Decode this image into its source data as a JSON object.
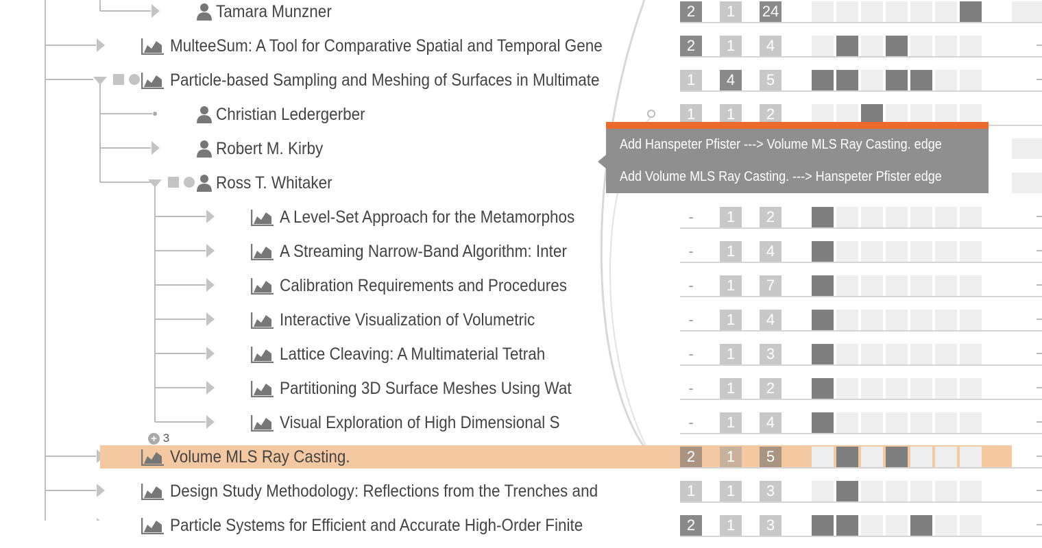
{
  "colors": {
    "highlight_row": "#f4c9a2",
    "tooltip_accent": "#ec6a2c",
    "tooltip_bg": "#8f8f8f",
    "cell_on": "#7f7f7f",
    "cell_off": "#eeeeee"
  },
  "rows": [
    {
      "id": "r0",
      "type": "person",
      "label": "Tamara Munzner",
      "depth": 2,
      "expander": "collapsed",
      "nums": [
        "2",
        "1",
        "24"
      ],
      "numStyle": [
        "dark",
        "light",
        "dark"
      ],
      "cells": [
        0,
        0,
        0,
        0,
        0,
        0,
        1
      ],
      "extraCell": true
    },
    {
      "id": "r1",
      "type": "paper",
      "label": "MulteeSum: A Tool for Comparative Spatial and Temporal Gene",
      "depth": 1,
      "expander": "collapsed",
      "nums": [
        "2",
        "1",
        "4"
      ],
      "numStyle": [
        "dark",
        "light",
        "light"
      ],
      "cells": [
        0,
        1,
        0,
        1,
        0,
        0,
        0
      ],
      "dashRight": true
    },
    {
      "id": "r2",
      "type": "paper",
      "label": "Particle-based Sampling and Meshing of Surfaces in Multimate",
      "depth": 1,
      "expander": "expanded",
      "nums": [
        "1",
        "4",
        "5"
      ],
      "numStyle": [
        "light",
        "dark",
        "light"
      ],
      "cells": [
        1,
        1,
        0,
        1,
        1,
        0,
        0
      ],
      "dashRight": true
    },
    {
      "id": "r3",
      "type": "person",
      "label": "Christian Ledergerber",
      "depth": 2,
      "expander": "leaf",
      "nums": [
        "1",
        "1",
        "2"
      ],
      "numStyle": [
        "light",
        "light",
        "light"
      ],
      "cells": [
        0,
        0,
        1,
        0,
        0,
        0,
        0
      ]
    },
    {
      "id": "r4",
      "type": "person",
      "label": "Robert M. Kirby",
      "depth": 2,
      "expander": "collapsed",
      "nums": [
        "",
        "",
        ""
      ],
      "numStyle": [
        "",
        "",
        ""
      ],
      "cells": [],
      "extraCell": true
    },
    {
      "id": "r5",
      "type": "person",
      "label": "Ross T. Whitaker",
      "depth": 2,
      "expander": "expanded",
      "nums": [
        "",
        "",
        ""
      ],
      "numStyle": [
        "",
        "",
        ""
      ],
      "cells": [],
      "extraCell": true
    },
    {
      "id": "r6",
      "type": "paper",
      "label": "A Level-Set Approach for the Metamorphos",
      "depth": 3,
      "expander": "collapsed",
      "nums": [
        "-",
        "1",
        "2"
      ],
      "numStyle": [
        "empty",
        "light",
        "light"
      ],
      "cells": [
        1,
        0,
        0,
        0,
        0,
        0,
        0
      ],
      "dashRight": true
    },
    {
      "id": "r7",
      "type": "paper",
      "label": "A Streaming Narrow-Band Algorithm: Inter",
      "depth": 3,
      "expander": "collapsed",
      "nums": [
        "-",
        "1",
        "4"
      ],
      "numStyle": [
        "empty",
        "light",
        "light"
      ],
      "cells": [
        1,
        0,
        0,
        0,
        0,
        0,
        0
      ],
      "dashRight": true
    },
    {
      "id": "r8",
      "type": "paper",
      "label": "Calibration Requirements and Procedures",
      "depth": 3,
      "expander": "collapsed",
      "nums": [
        "-",
        "1",
        "7"
      ],
      "numStyle": [
        "empty",
        "light",
        "light"
      ],
      "cells": [
        1,
        0,
        0,
        0,
        0,
        0,
        0
      ],
      "dashRight": true
    },
    {
      "id": "r9",
      "type": "paper",
      "label": "Interactive Visualization of Volumetric",
      "depth": 3,
      "expander": "collapsed",
      "nums": [
        "-",
        "1",
        "4"
      ],
      "numStyle": [
        "empty",
        "light",
        "light"
      ],
      "cells": [
        1,
        0,
        0,
        0,
        0,
        0,
        0
      ],
      "dashRight": true
    },
    {
      "id": "r10",
      "type": "paper",
      "label": "Lattice Cleaving: A Multimaterial Tetrah",
      "depth": 3,
      "expander": "collapsed",
      "nums": [
        "-",
        "1",
        "3"
      ],
      "numStyle": [
        "empty",
        "light",
        "light"
      ],
      "cells": [
        1,
        0,
        0,
        0,
        0,
        0,
        0
      ],
      "dashRight": true
    },
    {
      "id": "r11",
      "type": "paper",
      "label": "Partitioning 3D Surface Meshes Using Wat",
      "depth": 3,
      "expander": "collapsed",
      "nums": [
        "-",
        "1",
        "2"
      ],
      "numStyle": [
        "empty",
        "light",
        "light"
      ],
      "cells": [
        1,
        0,
        0,
        0,
        0,
        0,
        0
      ],
      "dashRight": true
    },
    {
      "id": "r12",
      "type": "paper",
      "label": "Visual Exploration of High Dimensional S",
      "depth": 3,
      "expander": "collapsed",
      "nums": [
        "-",
        "1",
        "4"
      ],
      "numStyle": [
        "empty",
        "light",
        "light"
      ],
      "cells": [
        1,
        0,
        0,
        0,
        0,
        0,
        0
      ],
      "dashRight": true
    },
    {
      "id": "r13",
      "type": "paper",
      "label": "Volume MLS Ray Casting.",
      "depth": 1,
      "expander": "collapsed",
      "nums": [
        "2",
        "1",
        "5"
      ],
      "numStyle": [
        "hl-dark",
        "hl-light",
        "hl-dark"
      ],
      "cells": [
        0,
        1,
        0,
        1,
        0,
        0,
        0
      ],
      "highlight": true,
      "dashRight": true
    },
    {
      "id": "r14",
      "type": "paper",
      "label": "Design Study Methodology: Reflections from the Trenches and",
      "depth": 1,
      "expander": "collapsed",
      "nums": [
        "1",
        "1",
        "3"
      ],
      "numStyle": [
        "light",
        "light",
        "light"
      ],
      "cells": [
        0,
        1,
        0,
        0,
        0,
        0,
        0
      ],
      "dashRight": true
    },
    {
      "id": "r15",
      "type": "paper",
      "label": "Particle Systems for Efficient and Accurate High-Order Finite",
      "depth": 1,
      "expander": "collapsed",
      "nums": [
        "2",
        "1",
        "3"
      ],
      "numStyle": [
        "dark",
        "light",
        "light"
      ],
      "cells": [
        1,
        1,
        0,
        0,
        1,
        0,
        0
      ],
      "dashRight": true
    }
  ],
  "more_badge": {
    "symbol": "+",
    "count": "3"
  },
  "tooltip": {
    "items": [
      "Add Hanspeter Pfister ---> Volume MLS Ray Casting. edge",
      "Add Volume MLS Ray Casting. ---> Hanspeter Pfister edge"
    ]
  }
}
